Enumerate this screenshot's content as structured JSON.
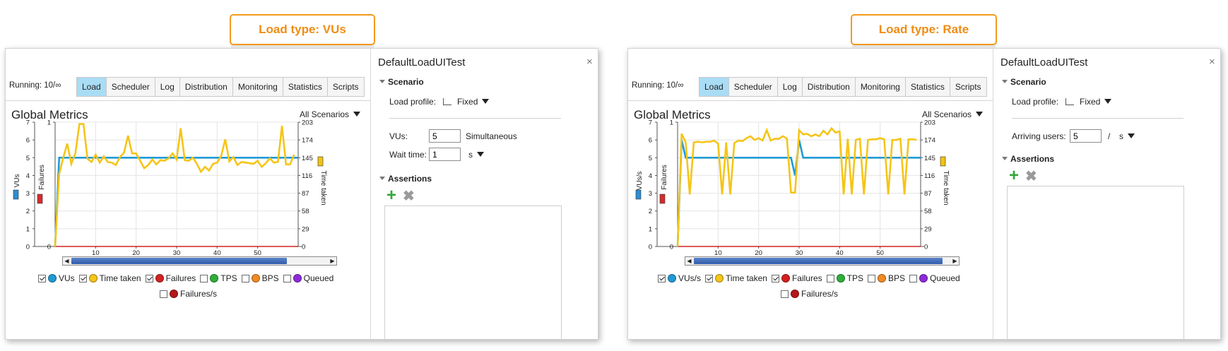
{
  "left": {
    "callout": "Load type: VUs",
    "running": "Running: 10/∞",
    "tabs": [
      "Load",
      "Scheduler",
      "Log",
      "Distribution",
      "Monitoring",
      "Statistics",
      "Scripts"
    ],
    "metrics_title": "Global Metrics",
    "scenario_filter": "All Scenarios",
    "chart": {
      "left_axis_label": "VUs",
      "failures_label": "Failures",
      "right_axis_label": "Time taken",
      "left_ticks": [
        "0",
        "1",
        "2",
        "3",
        "4",
        "5",
        "6",
        "7"
      ],
      "failures_ticks": [
        "0",
        "1"
      ],
      "right_ticks": [
        "0",
        "29",
        "58",
        "87",
        "116",
        "145",
        "174",
        "203"
      ],
      "x_ticks": [
        "10",
        "20",
        "30",
        "40",
        "50"
      ],
      "colors": {
        "users": "#1f9ad6",
        "time": "#f5c518",
        "failures": "#d42020",
        "axis_users": "#2b8fd1",
        "axis_time": "#f2c312",
        "axis_fail": "#d62b2b"
      },
      "chart_data": {
        "type": "line",
        "xlim": [
          0,
          60
        ],
        "series": [
          {
            "name": "VUs",
            "axis": "left",
            "ylim": [
              0,
              7
            ],
            "points": [
              [
                0,
                0
              ],
              [
                1,
                5
              ],
              [
                60,
                5
              ]
            ]
          },
          {
            "name": "Time taken",
            "axis": "right",
            "ylim": [
              0,
              203
            ],
            "points": [
              [
                0,
                0
              ],
              [
                1,
                118
              ],
              [
                2,
                145
              ],
              [
                3,
                168
              ],
              [
                4,
                135
              ],
              [
                5,
                152
              ],
              [
                6,
                200
              ],
              [
                7,
                200
              ],
              [
                8,
                143
              ],
              [
                9,
                138
              ],
              [
                10,
                150
              ],
              [
                11,
                137
              ],
              [
                12,
                147
              ],
              [
                13,
                138
              ],
              [
                14,
                137
              ],
              [
                15,
                133
              ],
              [
                16,
                146
              ],
              [
                17,
                153
              ],
              [
                18,
                181
              ],
              [
                19,
                152
              ],
              [
                20,
                152
              ],
              [
                21,
                140
              ],
              [
                22,
                128
              ],
              [
                23,
                133
              ],
              [
                24,
                142
              ],
              [
                25,
                134
              ],
              [
                26,
                141
              ],
              [
                27,
                140
              ],
              [
                28,
                144
              ],
              [
                29,
                152
              ],
              [
                30,
                142
              ],
              [
                31,
                193
              ],
              [
                32,
                141
              ],
              [
                33,
                140
              ],
              [
                34,
                145
              ],
              [
                35,
                135
              ],
              [
                36,
                122
              ],
              [
                37,
                130
              ],
              [
                38,
                124
              ],
              [
                39,
                135
              ],
              [
                40,
                137
              ],
              [
                41,
                148
              ],
              [
                42,
                175
              ],
              [
                43,
                139
              ],
              [
                44,
                146
              ],
              [
                45,
                133
              ],
              [
                46,
                138
              ],
              [
                47,
                137
              ],
              [
                48,
                136
              ],
              [
                49,
                135
              ],
              [
                50,
                140
              ],
              [
                51,
                130
              ],
              [
                52,
                136
              ],
              [
                53,
                144
              ],
              [
                54,
                137
              ],
              [
                55,
                138
              ],
              [
                56,
                197
              ],
              [
                57,
                134
              ],
              [
                58,
                134
              ],
              [
                59,
                150
              ]
            ]
          },
          {
            "name": "Failures",
            "axis": "failures",
            "ylim": [
              0,
              1
            ],
            "points": [
              [
                0,
                0
              ],
              [
                60,
                0
              ]
            ]
          }
        ]
      },
      "scroll_thumb": [
        0,
        0.84
      ]
    },
    "legend": [
      {
        "label": "VUs",
        "checked": true,
        "color": "#1f9ad6"
      },
      {
        "label": "Time taken",
        "checked": true,
        "color": "#f5c518"
      },
      {
        "label": "Failures",
        "checked": true,
        "color": "#d42020"
      },
      {
        "label": "TPS",
        "checked": false,
        "color": "#2fae3a"
      },
      {
        "label": "BPS",
        "checked": false,
        "color": "#f08a24"
      },
      {
        "label": "Queued",
        "checked": false,
        "color": "#8e2bd8"
      },
      {
        "label": "Failures/s",
        "checked": false,
        "color": "#b41818"
      }
    ],
    "panel": {
      "title": "DefaultLoadUITest",
      "close": "×",
      "scenario_header": "Scenario",
      "load_profile_label": "Load profile:",
      "load_profile_value": "Fixed",
      "vus_label": "VUs:",
      "vus_value": "5",
      "vus_suffix": "Simultaneous",
      "wait_label": "Wait time:",
      "wait_value": "1",
      "wait_unit": "s",
      "assertions_header": "Assertions",
      "add": "+",
      "remove": "✖"
    }
  },
  "right": {
    "callout": "Load type: Rate",
    "running": "Running: 10/∞",
    "tabs": [
      "Load",
      "Scheduler",
      "Log",
      "Distribution",
      "Monitoring",
      "Statistics",
      "Scripts"
    ],
    "metrics_title": "Global Metrics",
    "scenario_filter": "All Scenarios",
    "chart": {
      "left_axis_label": "VUs/s",
      "failures_label": "Failures",
      "right_axis_label": "Time taken",
      "left_ticks": [
        "0",
        "1",
        "2",
        "3",
        "4",
        "5",
        "6",
        "7"
      ],
      "failures_ticks": [
        "0",
        "1"
      ],
      "right_ticks": [
        "0",
        "29",
        "58",
        "87",
        "116",
        "145",
        "174",
        "203"
      ],
      "x_ticks": [
        "10",
        "20",
        "30",
        "40",
        "50"
      ],
      "colors": {
        "users": "#1f9ad6",
        "time": "#f5c518",
        "failures": "#d42020",
        "axis_users": "#2b8fd1",
        "axis_time": "#f2c312",
        "axis_fail": "#d62b2b"
      },
      "chart_data": {
        "type": "line",
        "xlim": [
          0,
          60
        ],
        "series": [
          {
            "name": "VUs/s",
            "axis": "left",
            "ylim": [
              0,
              7
            ],
            "points": [
              [
                0,
                0
              ],
              [
                1,
                6
              ],
              [
                2,
                5
              ],
              [
                28,
                5
              ],
              [
                29,
                4
              ],
              [
                30,
                6
              ],
              [
                31,
                5
              ],
              [
                60,
                5
              ]
            ]
          },
          {
            "name": "Time taken",
            "axis": "right",
            "ylim": [
              0,
              203
            ],
            "points": [
              [
                0,
                0
              ],
              [
                1,
                184
              ],
              [
                2,
                170
              ],
              [
                3,
                85
              ],
              [
                4,
                170
              ],
              [
                5,
                171
              ],
              [
                6,
                170
              ],
              [
                7,
                171
              ],
              [
                8,
                171
              ],
              [
                9,
                173
              ],
              [
                10,
                168
              ],
              [
                11,
                85
              ],
              [
                12,
                170
              ],
              [
                13,
                85
              ],
              [
                14,
                169
              ],
              [
                15,
                173
              ],
              [
                16,
                172
              ],
              [
                17,
                177
              ],
              [
                18,
                180
              ],
              [
                19,
                174
              ],
              [
                20,
                177
              ],
              [
                21,
                173
              ],
              [
                22,
                190
              ],
              [
                23,
                173
              ],
              [
                24,
                176
              ],
              [
                25,
                176
              ],
              [
                26,
                180
              ],
              [
                27,
                176
              ],
              [
                28,
                88
              ],
              [
                29,
                88
              ],
              [
                30,
                190
              ],
              [
                31,
                183
              ],
              [
                32,
                184
              ],
              [
                33,
                180
              ],
              [
                34,
                183
              ],
              [
                35,
                180
              ],
              [
                36,
                189
              ],
              [
                37,
                183
              ],
              [
                38,
                193
              ],
              [
                39,
                186
              ],
              [
                40,
                188
              ],
              [
                41,
                85
              ],
              [
                42,
                176
              ],
              [
                43,
                85
              ],
              [
                44,
                174
              ],
              [
                45,
                176
              ],
              [
                46,
                85
              ],
              [
                47,
                174
              ],
              [
                48,
                175
              ],
              [
                49,
                175
              ],
              [
                50,
                177
              ],
              [
                51,
                175
              ],
              [
                52,
                85
              ],
              [
                53,
                174
              ],
              [
                54,
                174
              ],
              [
                55,
                176
              ],
              [
                56,
                85
              ],
              [
                57,
                175
              ],
              [
                58,
                175
              ],
              [
                59,
                174
              ]
            ]
          },
          {
            "name": "Failures",
            "axis": "failures",
            "ylim": [
              0,
              1
            ],
            "points": [
              [
                0,
                0
              ],
              [
                60,
                0
              ]
            ]
          }
        ]
      },
      "scroll_thumb": [
        0,
        0.97
      ]
    },
    "legend": [
      {
        "label": "VUs/s",
        "checked": true,
        "color": "#1f9ad6"
      },
      {
        "label": "Time taken",
        "checked": true,
        "color": "#f5c518"
      },
      {
        "label": "Failures",
        "checked": true,
        "color": "#d42020"
      },
      {
        "label": "TPS",
        "checked": false,
        "color": "#2fae3a"
      },
      {
        "label": "BPS",
        "checked": false,
        "color": "#f08a24"
      },
      {
        "label": "Queued",
        "checked": false,
        "color": "#8e2bd8"
      },
      {
        "label": "Failures/s",
        "checked": false,
        "color": "#b41818"
      }
    ],
    "panel": {
      "title": "DefaultLoadUITest",
      "close": "×",
      "scenario_header": "Scenario",
      "load_profile_label": "Load profile:",
      "load_profile_value": "Fixed",
      "arriving_label": "Arriving users:",
      "arriving_value": "5",
      "arriving_sep": "/",
      "arriving_unit": "s",
      "assertions_header": "Assertions",
      "add": "+",
      "remove": "✖"
    }
  }
}
